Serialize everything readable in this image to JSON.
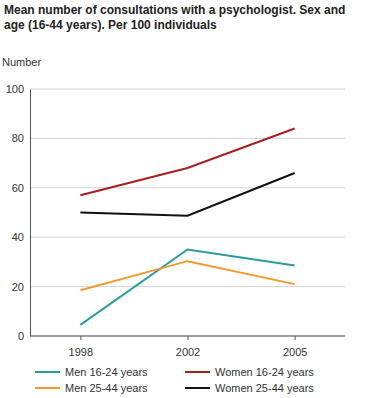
{
  "chart_data": {
    "type": "line",
    "title": "Mean number of consultations with a psychologist. Sex and age (16-44 years). Per 100 individuals",
    "y_label": "Number",
    "categories": [
      "1998",
      "2002",
      "2005"
    ],
    "series": [
      {
        "name": "Men 16-24 years",
        "color": "#2a9c9c",
        "values": [
          4.5,
          35,
          28.5
        ]
      },
      {
        "name": "Men 25-44 years",
        "color": "#f29a2e",
        "values": [
          18.5,
          30.3,
          21
        ]
      },
      {
        "name": "Women 16-24 years",
        "color": "#a51f1f",
        "values": [
          57,
          68,
          84
        ]
      },
      {
        "name": "Women 25-44 years",
        "color": "#111111",
        "values": [
          50,
          48.7,
          66
        ]
      }
    ],
    "ylim": [
      0,
      100
    ],
    "yticks": [
      0,
      20,
      40,
      60,
      80,
      100
    ],
    "grid": true,
    "legend": "bottom"
  }
}
